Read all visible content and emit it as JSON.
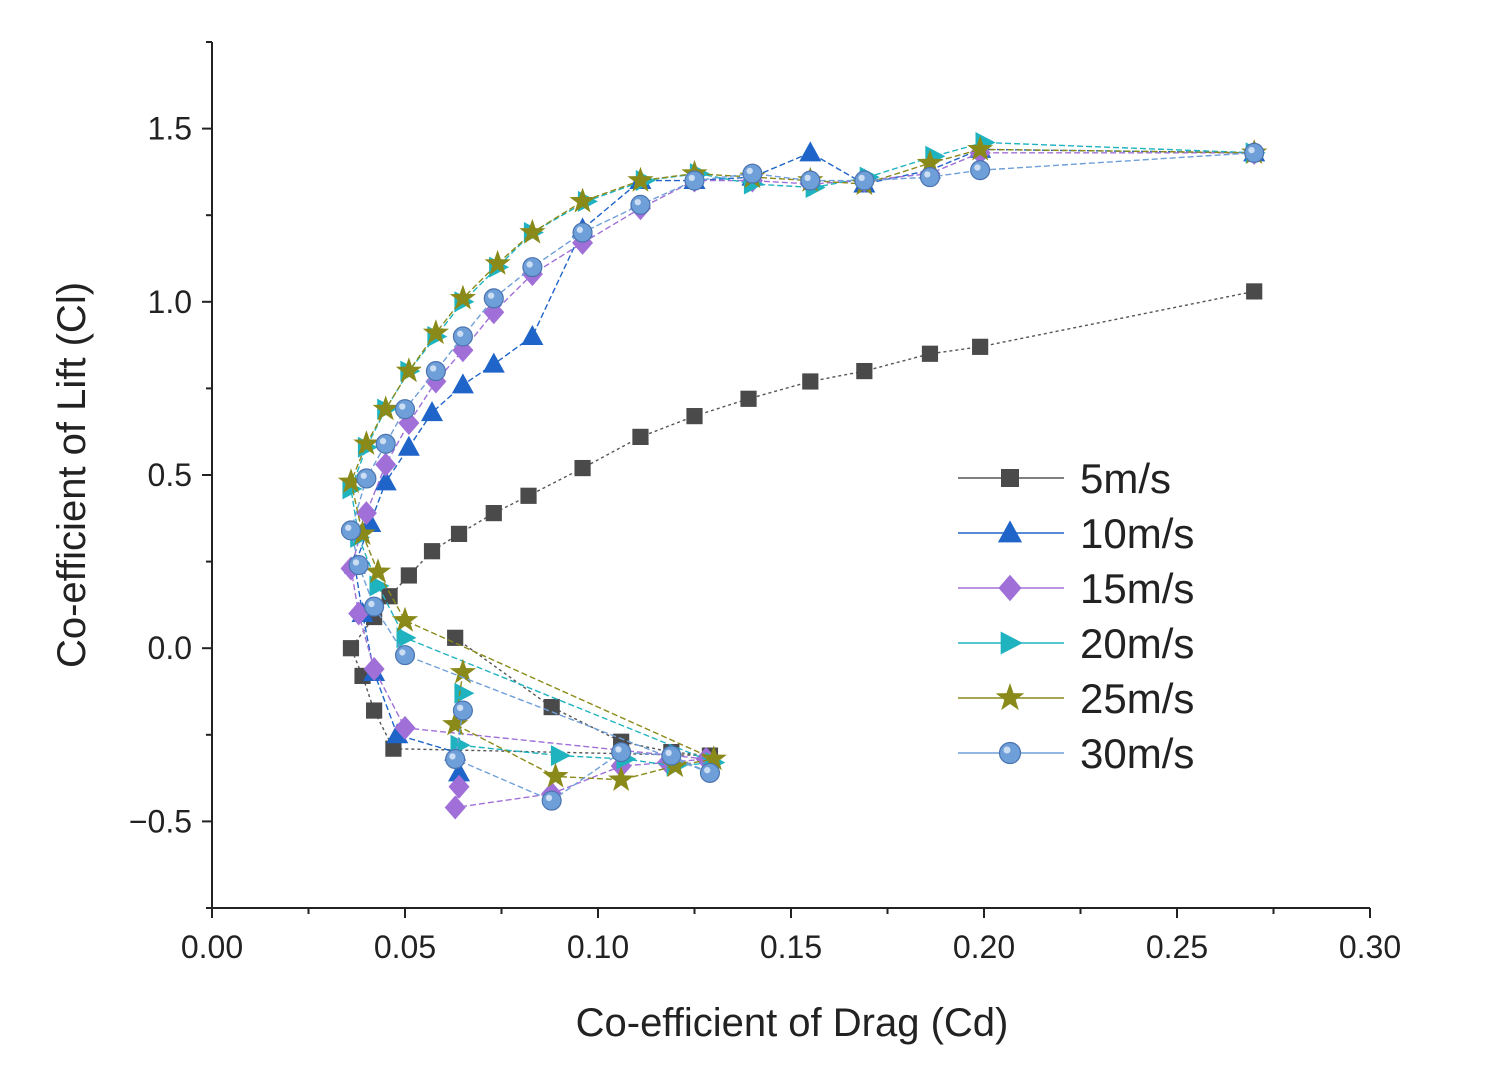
{
  "chart_data": {
    "type": "scatter",
    "xlabel": "Co-efficient of Drag (Cd)",
    "ylabel": "Co-efficient of Lift (Cl)",
    "xlim": [
      0.0,
      0.3
    ],
    "ylim": [
      -0.75,
      1.75
    ],
    "xticks": [
      {
        "value": 0.0,
        "label": "0.00"
      },
      {
        "value": 0.05,
        "label": "0.05"
      },
      {
        "value": 0.1,
        "label": "0.10"
      },
      {
        "value": 0.15,
        "label": "0.15"
      },
      {
        "value": 0.2,
        "label": "0.20"
      },
      {
        "value": 0.25,
        "label": "0.25"
      },
      {
        "value": 0.3,
        "label": "0.30"
      }
    ],
    "yticks": [
      {
        "value": -0.5,
        "label": "−0.5"
      },
      {
        "value": 0.0,
        "label": "0.0"
      },
      {
        "value": 0.5,
        "label": "0.5"
      },
      {
        "value": 1.0,
        "label": "1.0"
      },
      {
        "value": 1.5,
        "label": "1.5"
      }
    ],
    "grid": false,
    "legend_position": "right-center",
    "series": [
      {
        "name": "5m/s",
        "marker": "square",
        "color": "#4a4a4a",
        "line_color": "#555555",
        "points": [
          [
            0.063,
            0.03
          ],
          [
            0.088,
            -0.17
          ],
          [
            0.106,
            -0.27
          ],
          [
            0.119,
            -0.3
          ],
          [
            0.129,
            -0.31
          ],
          [
            0.047,
            -0.29
          ],
          [
            0.042,
            -0.18
          ],
          [
            0.039,
            -0.08
          ],
          [
            0.036,
            0.0
          ],
          [
            0.042,
            0.09
          ],
          [
            0.046,
            0.15
          ],
          [
            0.051,
            0.21
          ],
          [
            0.057,
            0.28
          ],
          [
            0.064,
            0.33
          ],
          [
            0.073,
            0.39
          ],
          [
            0.082,
            0.44
          ],
          [
            0.096,
            0.52
          ],
          [
            0.111,
            0.61
          ],
          [
            0.125,
            0.67
          ],
          [
            0.139,
            0.72
          ],
          [
            0.155,
            0.77
          ],
          [
            0.169,
            0.8
          ],
          [
            0.186,
            0.85
          ],
          [
            0.199,
            0.87
          ],
          [
            0.27,
            1.03
          ]
        ]
      },
      {
        "name": "10m/s",
        "marker": "triangle-up",
        "color": "#1f64c8",
        "line_color": "#1f64c8",
        "points": [
          [
            0.064,
            -0.36
          ],
          [
            0.063,
            -0.3
          ],
          [
            0.048,
            -0.25
          ],
          [
            0.042,
            -0.07
          ],
          [
            0.039,
            0.1
          ],
          [
            0.037,
            0.24
          ],
          [
            0.041,
            0.36
          ],
          [
            0.045,
            0.48
          ],
          [
            0.051,
            0.58
          ],
          [
            0.057,
            0.68
          ],
          [
            0.065,
            0.76
          ],
          [
            0.073,
            0.82
          ],
          [
            0.083,
            0.9
          ],
          [
            0.096,
            1.21
          ],
          [
            0.111,
            1.35
          ],
          [
            0.125,
            1.35
          ],
          [
            0.14,
            1.36
          ],
          [
            0.155,
            1.43
          ],
          [
            0.169,
            1.34
          ],
          [
            0.186,
            1.38
          ],
          [
            0.199,
            1.44
          ],
          [
            0.27,
            1.43
          ]
        ]
      },
      {
        "name": "15m/s",
        "marker": "diamond",
        "color": "#a070d8",
        "line_color": "#a070d8",
        "points": [
          [
            0.064,
            -0.4
          ],
          [
            0.063,
            -0.46
          ],
          [
            0.088,
            -0.42
          ],
          [
            0.106,
            -0.34
          ],
          [
            0.118,
            -0.33
          ],
          [
            0.128,
            -0.32
          ],
          [
            0.05,
            -0.23
          ],
          [
            0.042,
            -0.06
          ],
          [
            0.038,
            0.1
          ],
          [
            0.036,
            0.23
          ],
          [
            0.04,
            0.39
          ],
          [
            0.045,
            0.53
          ],
          [
            0.051,
            0.65
          ],
          [
            0.058,
            0.77
          ],
          [
            0.065,
            0.86
          ],
          [
            0.073,
            0.97
          ],
          [
            0.083,
            1.08
          ],
          [
            0.096,
            1.17
          ],
          [
            0.111,
            1.27
          ],
          [
            0.125,
            1.35
          ],
          [
            0.14,
            1.35
          ],
          [
            0.155,
            1.34
          ],
          [
            0.169,
            1.35
          ],
          [
            0.186,
            1.37
          ],
          [
            0.199,
            1.43
          ],
          [
            0.27,
            1.43
          ]
        ]
      },
      {
        "name": "20m/s",
        "marker": "triangle-right",
        "color": "#1fb3c0",
        "line_color": "#1fb3c0",
        "points": [
          [
            0.065,
            -0.13
          ],
          [
            0.064,
            -0.28
          ],
          [
            0.09,
            -0.31
          ],
          [
            0.107,
            -0.32
          ],
          [
            0.12,
            -0.34
          ],
          [
            0.13,
            -0.33
          ],
          [
            0.05,
            0.03
          ],
          [
            0.043,
            0.18
          ],
          [
            0.038,
            0.32
          ],
          [
            0.036,
            0.46
          ],
          [
            0.04,
            0.58
          ],
          [
            0.045,
            0.69
          ],
          [
            0.051,
            0.8
          ],
          [
            0.058,
            0.9
          ],
          [
            0.065,
            1.0
          ],
          [
            0.074,
            1.1
          ],
          [
            0.083,
            1.2
          ],
          [
            0.097,
            1.29
          ],
          [
            0.112,
            1.35
          ],
          [
            0.126,
            1.37
          ],
          [
            0.14,
            1.34
          ],
          [
            0.156,
            1.33
          ],
          [
            0.17,
            1.36
          ],
          [
            0.187,
            1.42
          ],
          [
            0.2,
            1.46
          ],
          [
            0.27,
            1.43
          ]
        ]
      },
      {
        "name": "25m/s",
        "marker": "star",
        "color": "#8a8a1a",
        "line_color": "#8a8a1a",
        "points": [
          [
            0.065,
            -0.07
          ],
          [
            0.063,
            -0.22
          ],
          [
            0.089,
            -0.37
          ],
          [
            0.106,
            -0.38
          ],
          [
            0.12,
            -0.34
          ],
          [
            0.13,
            -0.32
          ],
          [
            0.05,
            0.08
          ],
          [
            0.043,
            0.22
          ],
          [
            0.039,
            0.33
          ],
          [
            0.036,
            0.48
          ],
          [
            0.04,
            0.59
          ],
          [
            0.045,
            0.69
          ],
          [
            0.051,
            0.8
          ],
          [
            0.058,
            0.91
          ],
          [
            0.065,
            1.01
          ],
          [
            0.074,
            1.11
          ],
          [
            0.083,
            1.2
          ],
          [
            0.096,
            1.29
          ],
          [
            0.111,
            1.35
          ],
          [
            0.125,
            1.37
          ],
          [
            0.14,
            1.36
          ],
          [
            0.155,
            1.35
          ],
          [
            0.169,
            1.34
          ],
          [
            0.186,
            1.4
          ],
          [
            0.199,
            1.44
          ],
          [
            0.27,
            1.43
          ]
        ]
      },
      {
        "name": "30m/s",
        "marker": "circle",
        "color": "#6f9fd8",
        "line_color": "#6f9fd8",
        "points": [
          [
            0.065,
            -0.18
          ],
          [
            0.063,
            -0.32
          ],
          [
            0.088,
            -0.44
          ],
          [
            0.106,
            -0.3
          ],
          [
            0.119,
            -0.31
          ],
          [
            0.129,
            -0.36
          ],
          [
            0.05,
            -0.02
          ],
          [
            0.042,
            0.12
          ],
          [
            0.038,
            0.24
          ],
          [
            0.036,
            0.34
          ],
          [
            0.04,
            0.49
          ],
          [
            0.045,
            0.59
          ],
          [
            0.05,
            0.69
          ],
          [
            0.058,
            0.8
          ],
          [
            0.065,
            0.9
          ],
          [
            0.073,
            1.01
          ],
          [
            0.083,
            1.1
          ],
          [
            0.096,
            1.2
          ],
          [
            0.111,
            1.28
          ],
          [
            0.125,
            1.35
          ],
          [
            0.14,
            1.37
          ],
          [
            0.155,
            1.35
          ],
          [
            0.169,
            1.35
          ],
          [
            0.186,
            1.36
          ],
          [
            0.199,
            1.38
          ],
          [
            0.27,
            1.43
          ]
        ]
      }
    ]
  }
}
